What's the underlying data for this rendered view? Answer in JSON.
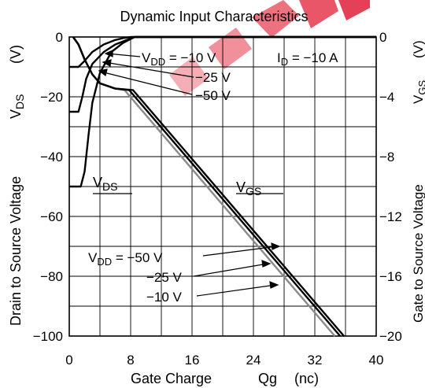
{
  "chart_data": {
    "type": "line",
    "title": "Dynamic Input Characteristics",
    "xlabel": "Gate Charge",
    "xlabel_symbol": "Qg",
    "xlabel_unit": "(nc)",
    "ylabel_left": "Drain to Source Voltage",
    "ylabel_left_symbol": "V",
    "ylabel_left_symbol_sub": "DS",
    "ylabel_left_unit": "(V)",
    "ylabel_right": "Gate to Source Voltage",
    "ylabel_right_symbol": "V",
    "ylabel_right_symbol_sub": "GS",
    "ylabel_right_unit": "(V)",
    "xlim": [
      0,
      40
    ],
    "ylim_left": [
      -100,
      0
    ],
    "ylim_right": [
      -20,
      0
    ],
    "x_ticks": [
      "0",
      "8",
      "16",
      "24",
      "32",
      "40"
    ],
    "y_ticks_left": [
      "0",
      "−20",
      "−40",
      "−60",
      "−80",
      "−100"
    ],
    "y_ticks_right": [
      "0",
      "−4",
      "−8",
      "−12",
      "−16",
      "−20"
    ],
    "grid": true,
    "annotations": {
      "id_label": "I",
      "id_sub": "D",
      "id_value": " = −10 A",
      "vds_upper_prefix": "V",
      "vds_upper_sub": "DD",
      "vds_upper_value": " = −10 V",
      "vds_mid": "−25 V",
      "vds_low": "−50 V",
      "vds_curve_label": "V",
      "vds_curve_sub": "DS",
      "vgs_curve_label": "V",
      "vgs_curve_sub": "GS",
      "vgs_group_prefix": "V",
      "vgs_group_sub": "DD",
      "vgs_group_value": " = −50 V",
      "vgs_mid": "−25 V",
      "vgs_low": "−10 V"
    },
    "series": [
      {
        "group": "VDS",
        "vdd": "-10 V",
        "axis": "left",
        "color": "#000000",
        "x": [
          0,
          1.2,
          2.0,
          3.0,
          4.5,
          6.0,
          7.0,
          8.0,
          40
        ],
        "y": [
          -10,
          -10,
          -8,
          -5,
          -2.5,
          -1,
          -0.4,
          0,
          0
        ]
      },
      {
        "group": "VDS",
        "vdd": "-25 V",
        "axis": "left",
        "color": "#000000",
        "x": [
          0,
          1.2,
          1.7,
          2.2,
          3.0,
          4.5,
          6.0,
          7.5,
          8.5,
          40
        ],
        "y": [
          -25,
          -25,
          -20,
          -14,
          -9,
          -5,
          -2.5,
          -1,
          0,
          0
        ]
      },
      {
        "group": "VDS",
        "vdd": "-50 V",
        "axis": "left",
        "color": "#000000",
        "x": [
          0,
          1.5,
          2.0,
          2.5,
          3.0,
          4.0,
          5.5,
          7.0,
          8.5,
          40
        ],
        "y": [
          -50,
          -50,
          -45,
          -33,
          -22,
          -12,
          -5,
          -2,
          0,
          0
        ]
      },
      {
        "group": "VGS",
        "vdd": "-10 V",
        "axis": "right",
        "color": "#8a8a8a",
        "x": [
          0.5,
          1.2,
          2.0,
          3.0,
          4.0,
          6.0,
          7.2,
          34.6
        ],
        "y": [
          0,
          -0.5,
          -1.5,
          -2.5,
          -3.1,
          -3.45,
          -3.55,
          -20
        ]
      },
      {
        "group": "VGS",
        "vdd": "-25 V",
        "axis": "right",
        "color": "#000000",
        "x": [
          0.5,
          1.2,
          2.0,
          3.0,
          4.0,
          6.0,
          7.8,
          35.3
        ],
        "y": [
          0,
          -0.5,
          -1.5,
          -2.5,
          -3.1,
          -3.45,
          -3.55,
          -20
        ]
      },
      {
        "group": "VGS",
        "vdd": "-50 V",
        "axis": "right",
        "color": "#000000",
        "x": [
          0.5,
          1.2,
          2.0,
          3.0,
          4.0,
          6.0,
          8.3,
          35.8
        ],
        "y": [
          0,
          -0.5,
          -1.5,
          -2.5,
          -3.1,
          -3.45,
          -3.55,
          -20
        ]
      }
    ]
  }
}
